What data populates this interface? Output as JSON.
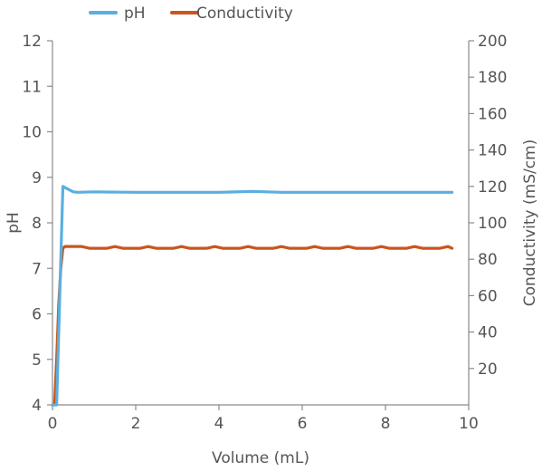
{
  "chart_data": {
    "type": "line",
    "xlabel": "Volume (mL)",
    "ylabel_left": "pH",
    "ylabel_right": "Conductivity (mS/cm)",
    "xlim": [
      0,
      10
    ],
    "ylim_left": [
      4,
      12
    ],
    "ylim_right": [
      0,
      200
    ],
    "x_ticks": [
      0,
      2,
      4,
      6,
      8,
      10
    ],
    "y_left_ticks": [
      4,
      5,
      6,
      7,
      8,
      9,
      10,
      11,
      12
    ],
    "y_right_ticks": [
      20,
      40,
      60,
      80,
      100,
      120,
      140,
      160,
      180,
      200
    ],
    "grid": false,
    "legend_position": "top",
    "series": [
      {
        "name": "pH",
        "axis": "left",
        "color": "#5aafdf",
        "x": [
          0.0,
          0.1,
          0.2,
          0.25,
          0.35,
          0.5,
          0.6,
          1.0,
          2.0,
          3.0,
          4.0,
          4.8,
          5.5,
          6.0,
          7.0,
          8.0,
          9.0,
          9.6
        ],
        "y": [
          4.0,
          4.0,
          7.2,
          8.8,
          8.75,
          8.68,
          8.67,
          8.68,
          8.67,
          8.67,
          8.67,
          8.69,
          8.67,
          8.67,
          8.67,
          8.67,
          8.67,
          8.67
        ]
      },
      {
        "name": "Conductivity",
        "axis": "right",
        "color": "#c8561e",
        "x": [
          0.0,
          0.05,
          0.1,
          0.15,
          0.2,
          0.25,
          0.3,
          0.5,
          0.7,
          0.9,
          1.1,
          1.3,
          1.5,
          1.7,
          1.9,
          2.1,
          2.3,
          2.5,
          2.7,
          2.9,
          3.1,
          3.3,
          3.5,
          3.7,
          3.9,
          4.1,
          4.3,
          4.5,
          4.7,
          4.9,
          5.1,
          5.3,
          5.5,
          5.7,
          5.9,
          6.1,
          6.3,
          6.5,
          6.7,
          6.9,
          7.1,
          7.3,
          7.5,
          7.7,
          7.9,
          8.1,
          8.3,
          8.5,
          8.7,
          8.9,
          9.1,
          9.3,
          9.5,
          9.6
        ],
        "y": [
          0,
          0,
          25,
          55,
          75,
          86,
          87,
          87,
          87,
          86,
          86,
          86,
          87,
          86,
          86,
          86,
          87,
          86,
          86,
          86,
          87,
          86,
          86,
          86,
          87,
          86,
          86,
          86,
          87,
          86,
          86,
          86,
          87,
          86,
          86,
          86,
          87,
          86,
          86,
          86,
          87,
          86,
          86,
          86,
          87,
          86,
          86,
          86,
          87,
          86,
          86,
          86,
          87,
          86
        ]
      }
    ]
  }
}
